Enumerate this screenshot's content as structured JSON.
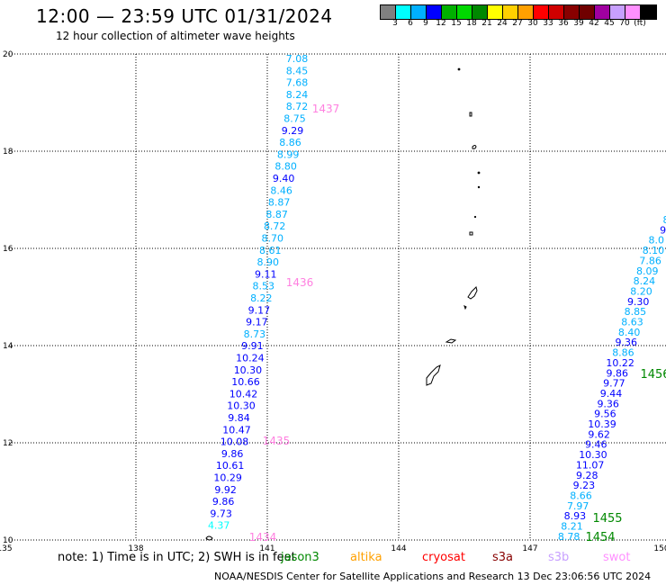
{
  "header": {
    "title": "12:00 — 23:59 UTC 01/31/2024",
    "subtitle": "12 hour collection of altimeter wave heights"
  },
  "colorbar": {
    "colors": [
      "#808080",
      "#00ffff",
      "#00b0ff",
      "#0000ff",
      "#00b000",
      "#00d800",
      "#008800",
      "#ffff00",
      "#ffd000",
      "#ffa000",
      "#ff0000",
      "#d00000",
      "#880000",
      "#700000",
      "#a000a0",
      "#c8a0ff",
      "#ff90ff",
      "#000000"
    ],
    "labels": [
      "3",
      "6",
      "9",
      "12",
      "15",
      "18",
      "21",
      "24",
      "27",
      "30",
      "33",
      "36",
      "39",
      "42",
      "45",
      "70",
      "(ft)"
    ]
  },
  "map": {
    "x_ticks": [
      "135",
      "138",
      "141",
      "144",
      "147",
      "150"
    ],
    "y_ticks": [
      "20",
      "18",
      "16",
      "14",
      "12",
      "10"
    ],
    "xlim": [
      135,
      150
    ],
    "ylim": [
      10,
      20
    ]
  },
  "track_left": {
    "values": [
      "7.08",
      "8.45",
      "7.68",
      "8.24",
      "8.72",
      "8.75",
      "9.29",
      "8.86",
      "8.99",
      "8.80",
      "9.40",
      "8.46",
      "8.87",
      "8.87",
      "8.72",
      "8.70",
      "8.61",
      "8.90",
      "9.11",
      "8.53",
      "8.22",
      "9.17",
      "9.17",
      "8.73",
      "9.91",
      "10.24",
      "10.30",
      "10.66",
      "10.42",
      "10.30",
      "9.84",
      "10.47",
      "10.08",
      "9.86",
      "10.61",
      "10.29",
      "9.92",
      "9.86",
      "9.73",
      "4.37"
    ],
    "colors": [
      "#00b0ff",
      "#00b0ff",
      "#00b0ff",
      "#00b0ff",
      "#00b0ff",
      "#00b0ff",
      "#0000ff",
      "#00b0ff",
      "#00b0ff",
      "#00b0ff",
      "#0000ff",
      "#00b0ff",
      "#00b0ff",
      "#00b0ff",
      "#00b0ff",
      "#00b0ff",
      "#00b0ff",
      "#00b0ff",
      "#0000ff",
      "#00b0ff",
      "#00b0ff",
      "#0000ff",
      "#0000ff",
      "#00b0ff",
      "#0000ff",
      "#0000ff",
      "#0000ff",
      "#0000ff",
      "#0000ff",
      "#0000ff",
      "#0000ff",
      "#0000ff",
      "#0000ff",
      "#0000ff",
      "#0000ff",
      "#0000ff",
      "#0000ff",
      "#0000ff",
      "#0000ff",
      "#00ffff"
    ],
    "times": [
      {
        "label": "1437",
        "color": "#ff80e0"
      },
      {
        "label": "1436",
        "color": "#ff80e0"
      },
      {
        "label": "1435",
        "color": "#ff80e0"
      },
      {
        "label": "1434",
        "color": "#ff80e0"
      }
    ]
  },
  "track_right": {
    "values": [
      "8",
      "9",
      "8.0",
      "8.10",
      "7.86",
      "8.09",
      "8.24",
      "8.20",
      "9.30",
      "8.85",
      "8.63",
      "8.40",
      "9.36",
      "8.86",
      "10.22",
      "9.86",
      "9.77",
      "9.44",
      "9.36",
      "9.56",
      "10.39",
      "9.62",
      "9.46",
      "10.30",
      "11.07",
      "9.28",
      "9.23",
      "8.66",
      "7.97",
      "8.93",
      "8.21",
      "8.78"
    ],
    "colors": [
      "#00b0ff",
      "#0000ff",
      "#00b0ff",
      "#00b0ff",
      "#00b0ff",
      "#00b0ff",
      "#00b0ff",
      "#00b0ff",
      "#0000ff",
      "#00b0ff",
      "#00b0ff",
      "#00b0ff",
      "#0000ff",
      "#00b0ff",
      "#0000ff",
      "#0000ff",
      "#0000ff",
      "#0000ff",
      "#0000ff",
      "#0000ff",
      "#0000ff",
      "#0000ff",
      "#0000ff",
      "#0000ff",
      "#0000ff",
      "#0000ff",
      "#0000ff",
      "#00b0ff",
      "#00b0ff",
      "#0000ff",
      "#00b0ff",
      "#00b0ff"
    ],
    "times": [
      {
        "label": "1456",
        "color": "#008800"
      },
      {
        "label": "1455",
        "color": "#008800"
      },
      {
        "label": "1454",
        "color": "#008800"
      }
    ]
  },
  "note": "note:  1) Time is in UTC;  2) SWH is in feet",
  "missions": [
    {
      "label": "jason3",
      "color": "#008800"
    },
    {
      "label": "altika",
      "color": "#ffa000"
    },
    {
      "label": "cryosat",
      "color": "#ff0000"
    },
    {
      "label": "s3a",
      "color": "#880000"
    },
    {
      "label": "s3b",
      "color": "#c8a0ff"
    },
    {
      "label": "swot",
      "color": "#ff90ff"
    }
  ],
  "footer": "NOAA/NESDIS Center for Satellite Applications and Research    13 Dec 23:06:56 UTC 2024"
}
